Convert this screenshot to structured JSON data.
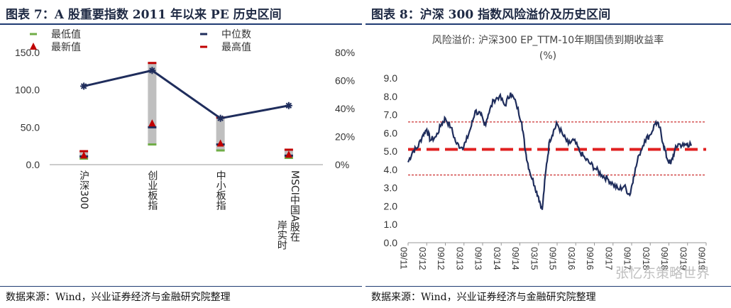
{
  "left": {
    "title": "图表 7：A 股重要指数 2011 年以来 PE 历史区间",
    "source": "数据来源：Wind，兴业证券经济与金融研究院整理"
  },
  "right": {
    "title": "图表 8：沪深 300 指数风险溢价及历史区间",
    "source": "数据来源：Wind，兴业证券经济与金融研究院整理",
    "watermark": "张忆东策略世界"
  },
  "chart_data": [
    {
      "type": "bar",
      "categories": [
        "沪深300",
        "创业板指",
        "中小板指",
        "MSCI中国A股在岸实时"
      ],
      "series": [
        {
          "name": "最低值",
          "values": [
            8,
            27,
            19,
            9
          ],
          "marker": "dash",
          "color": "#70ad47"
        },
        {
          "name": "最新值",
          "values": [
            12,
            55,
            28,
            13
          ],
          "marker": "triangle",
          "color": "#c00000"
        },
        {
          "name": "中位数",
          "values": [
            11,
            50,
            27,
            12
          ],
          "marker": "dash",
          "color": "#1f2d5c"
        },
        {
          "name": "最高值",
          "values": [
            18,
            136,
            63,
            20
          ],
          "marker": "dash",
          "color": "#c00000"
        },
        {
          "name": "",
          "values": [
            105,
            126,
            62,
            79
          ],
          "marker": "star",
          "color": "#1f2d5c",
          "axis": "right_pct_line"
        }
      ],
      "range_bars": {
        "color": "#bfbfbf"
      },
      "ylim": [
        0,
        150
      ],
      "yticks": [
        "0.0",
        "50.0",
        "100.0",
        "150.0"
      ],
      "y2ticks": [
        "0%",
        "20%",
        "40%",
        "60%",
        "80%"
      ],
      "legend": "top"
    },
    {
      "type": "line",
      "title": "风险溢价: 沪深300 EP_TTM-10年期国债到期收益率",
      "subtitle": "(%)",
      "xticks": [
        "09/11",
        "03/12",
        "09/12",
        "03/13",
        "09/13",
        "03/14",
        "09/14",
        "03/15",
        "09/15",
        "03/16",
        "09/16",
        "03/17",
        "09/17",
        "03/18",
        "09/18",
        "03/19",
        "09/19"
      ],
      "yticks": [
        "0.0",
        "1.0",
        "2.0",
        "3.0",
        "4.0",
        "5.0",
        "6.0",
        "7.0",
        "8.0",
        "9.0"
      ],
      "ylim": [
        0,
        9
      ],
      "series_anchor_points": [
        [
          0,
          4.4
        ],
        [
          0.25,
          5.0
        ],
        [
          0.5,
          5.2
        ],
        [
          0.8,
          5.9
        ],
        [
          1.0,
          6.2
        ],
        [
          1.2,
          5.6
        ],
        [
          1.5,
          5.8
        ],
        [
          1.8,
          6.5
        ],
        [
          2.0,
          6.8
        ],
        [
          2.3,
          6.3
        ],
        [
          2.6,
          5.4
        ],
        [
          2.9,
          5.2
        ],
        [
          3.1,
          5.5
        ],
        [
          3.4,
          6.4
        ],
        [
          3.6,
          7.2
        ],
        [
          3.9,
          7.0
        ],
        [
          4.1,
          6.4
        ],
        [
          4.3,
          7.0
        ],
        [
          4.6,
          7.8
        ],
        [
          4.9,
          8.0
        ],
        [
          5.2,
          7.5
        ],
        [
          5.5,
          8.2
        ],
        [
          5.8,
          7.6
        ],
        [
          6.1,
          6.6
        ],
        [
          6.3,
          5.0
        ],
        [
          6.5,
          4.0
        ],
        [
          6.8,
          3.1
        ],
        [
          7.0,
          2.5
        ],
        [
          7.2,
          1.8
        ],
        [
          7.4,
          4.0
        ],
        [
          7.6,
          5.6
        ],
        [
          7.8,
          6.1
        ],
        [
          8.0,
          6.5
        ],
        [
          8.3,
          5.9
        ],
        [
          8.6,
          5.4
        ],
        [
          8.9,
          5.6
        ],
        [
          9.2,
          5.0
        ],
        [
          9.5,
          4.6
        ],
        [
          9.8,
          4.3
        ],
        [
          10.1,
          4.0
        ],
        [
          10.4,
          3.7
        ],
        [
          10.7,
          3.5
        ],
        [
          11.0,
          3.2
        ],
        [
          11.3,
          2.9
        ],
        [
          11.6,
          3.1
        ],
        [
          11.9,
          2.6
        ],
        [
          12.1,
          3.6
        ],
        [
          12.4,
          4.8
        ],
        [
          12.7,
          5.6
        ],
        [
          13.0,
          5.9
        ],
        [
          13.3,
          6.6
        ],
        [
          13.5,
          6.3
        ],
        [
          13.7,
          5.4
        ],
        [
          13.9,
          4.6
        ],
        [
          14.1,
          4.3
        ],
        [
          14.3,
          5.0
        ],
        [
          14.5,
          5.4
        ],
        [
          14.8,
          5.3
        ],
        [
          15.0,
          5.4
        ],
        [
          15.2,
          5.3
        ]
      ],
      "reference_lines": [
        {
          "value": 6.6,
          "style": "thin-dashed",
          "color": "#c00000"
        },
        {
          "value": 5.1,
          "style": "thick-dashed",
          "color": "#e02020"
        },
        {
          "value": 3.7,
          "style": "thin-dashed",
          "color": "#c00000"
        }
      ],
      "line_color": "#1f2d5c"
    }
  ]
}
